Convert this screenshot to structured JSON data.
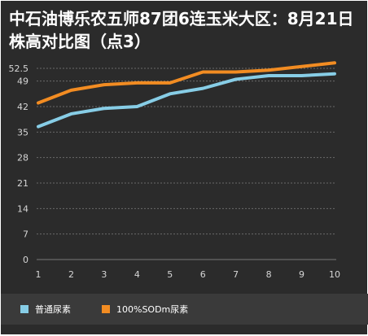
{
  "title": "中石油博乐农五师87团6连玉米大区：8月21日株高对比图（点3）",
  "colors": {
    "background": "#2b2b2b",
    "series_1": "#87cde6",
    "series_2": "#f28c22"
  },
  "chart_data": {
    "type": "line",
    "title": "中石油博乐农五师87团6连玉米大区：8月21日株高对比图（点3）",
    "x": [
      1,
      2,
      3,
      4,
      5,
      6,
      7,
      8,
      9,
      10
    ],
    "y_ticks": [
      0,
      7,
      14,
      21,
      28,
      35,
      42,
      49,
      52.5
    ],
    "ylim": [
      0,
      52.5
    ],
    "grid": true,
    "legend_position": "bottom",
    "series": [
      {
        "name": "普通尿素",
        "color": "#87cde6",
        "values": [
          36.5,
          40,
          41.5,
          42,
          45.5,
          47,
          49.5,
          50.5,
          50.5,
          51
        ]
      },
      {
        "name": "100%SODm尿素",
        "color": "#f28c22",
        "values": [
          43,
          46.5,
          48,
          48.5,
          48.5,
          51.5,
          51.5,
          52,
          53,
          54
        ]
      }
    ]
  }
}
